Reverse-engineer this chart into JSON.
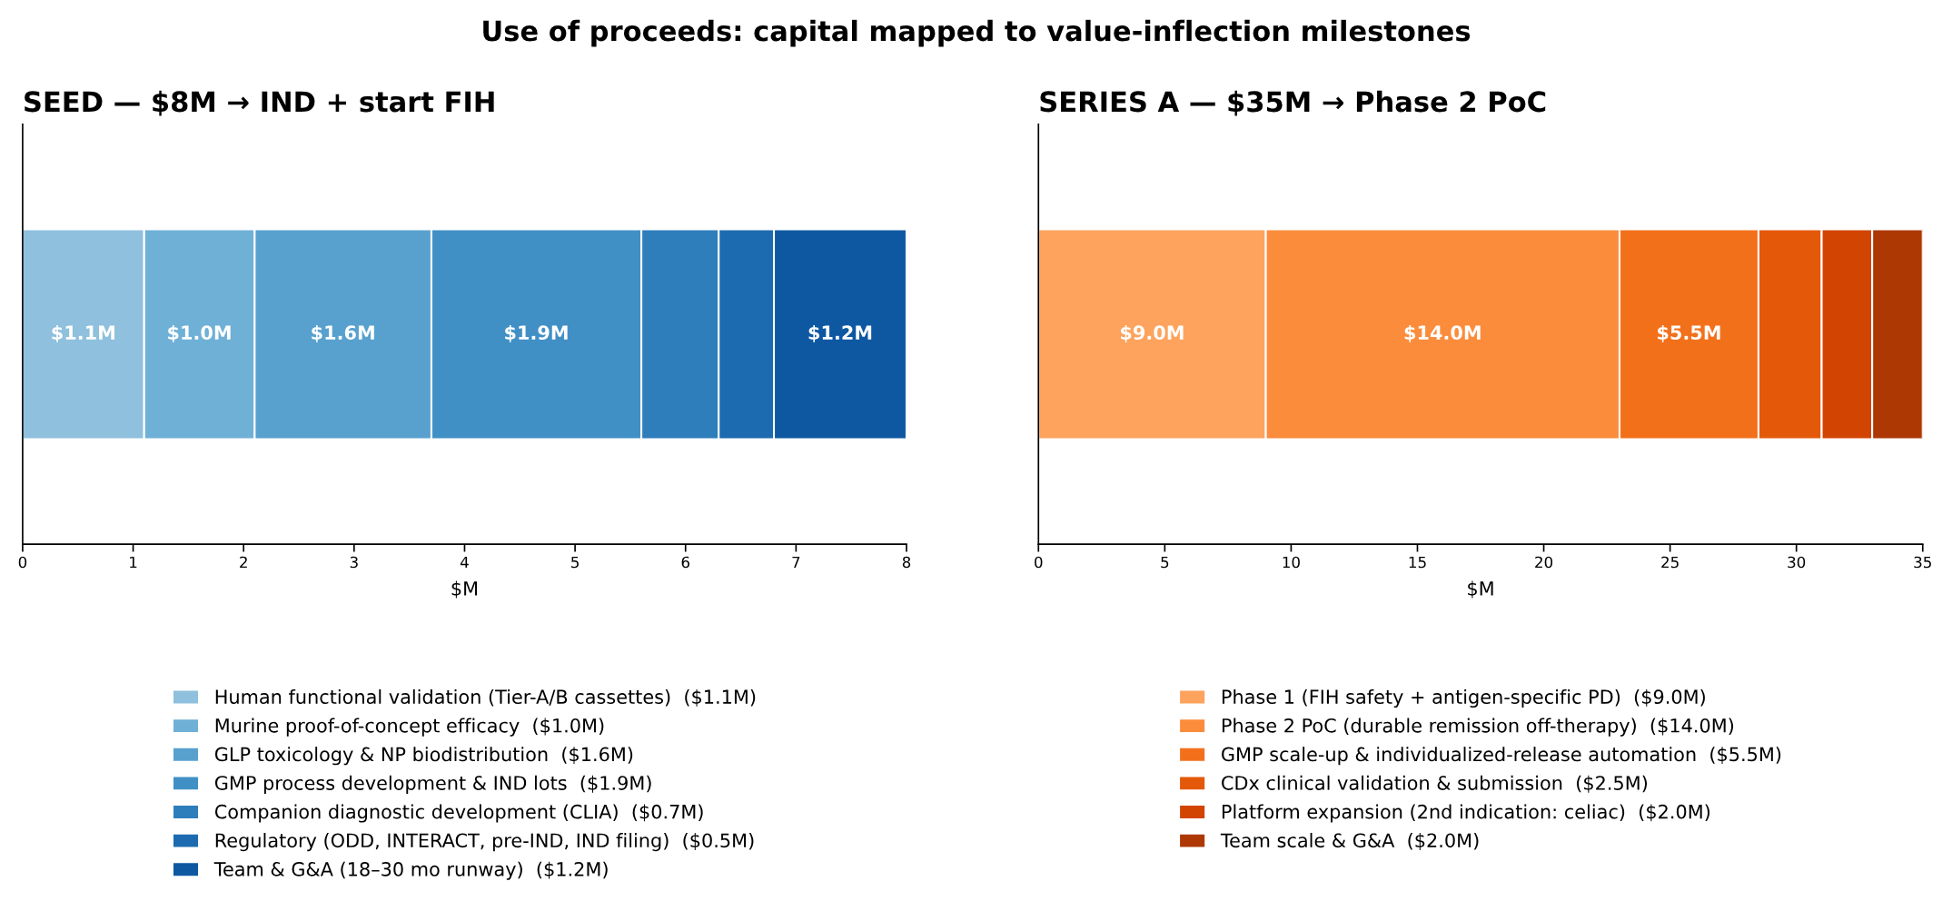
{
  "chart_data": [
    {
      "type": "bar",
      "orientation": "horizontal",
      "stacked": true,
      "title": "Use of proceeds: capital mapped to value-inflection milestones",
      "subtitle": "SEED — $8M → IND + start FIH",
      "xlabel": "$M",
      "categories": [
        null
      ],
      "xlim": [
        0,
        8
      ],
      "xticks": [
        0,
        1,
        2,
        3,
        4,
        5,
        6,
        7,
        8
      ],
      "tick_labels": "x",
      "grid": false,
      "legend": "bottom",
      "series": [
        {
          "name": "Human functional validation (Tier-A/B cassettes)  ($1.1M)",
          "color": "#8fc0dd",
          "values": [
            1.1
          ],
          "value_labels": [
            "$1.1M"
          ]
        },
        {
          "name": "Murine proof-of-concept efficacy  ($1.0M)",
          "color": "#6fb0d6",
          "values": [
            1.0
          ],
          "value_labels": [
            "$1.0M"
          ]
        },
        {
          "name": "GLP toxicology & NP biodistribution  ($1.6M)",
          "color": "#58a1cf",
          "values": [
            1.6
          ],
          "value_labels": [
            "$1.6M"
          ]
        },
        {
          "name": "GMP process development & IND lots  ($1.9M)",
          "color": "#4190c5",
          "values": [
            1.9
          ],
          "value_labels": [
            "$1.9M"
          ]
        },
        {
          "name": "Companion diagnostic development (CLIA)  ($0.7M)",
          "color": "#2e7ebc",
          "values": [
            0.7
          ],
          "value_labels": [
            null
          ]
        },
        {
          "name": "Regulatory (ODD, INTERACT, pre-IND, IND filing)  ($0.5M)",
          "color": "#1c6bb0",
          "values": [
            0.5
          ],
          "value_labels": [
            null
          ]
        },
        {
          "name": "Team & G&A (18–30 mo runway)  ($1.2M)",
          "color": "#0e58a2",
          "values": [
            1.2
          ],
          "value_labels": [
            "$1.2M"
          ]
        }
      ]
    },
    {
      "type": "bar",
      "orientation": "horizontal",
      "stacked": true,
      "subtitle": "SERIES A — $35M → Phase 2 PoC",
      "xlabel": "$M",
      "categories": [
        null
      ],
      "xlim": [
        0,
        35
      ],
      "xticks": [
        0,
        5,
        10,
        15,
        20,
        25,
        30,
        35
      ],
      "tick_labels": "x",
      "grid": false,
      "legend": "bottom",
      "series": [
        {
          "name": "Phase 1 (FIH safety + antigen-specific PD)  ($9.0M)",
          "color": "#fda35d",
          "values": [
            9.0
          ],
          "value_labels": [
            "$9.0M"
          ]
        },
        {
          "name": "Phase 2 PoC (durable remission off-therapy)  ($14.0M)",
          "color": "#fb8c3c",
          "values": [
            14.0
          ],
          "value_labels": [
            "$14.0M"
          ]
        },
        {
          "name": "GMP scale-up & individualized-release automation  ($5.5M)",
          "color": "#f3701b",
          "values": [
            5.5
          ],
          "value_labels": [
            "$5.5M"
          ]
        },
        {
          "name": "CDx clinical validation & submission  ($2.5M)",
          "color": "#e4580a",
          "values": [
            2.5
          ],
          "value_labels": [
            null
          ]
        },
        {
          "name": "Platform expansion (2nd indication: celiac)  ($2.0M)",
          "color": "#d24401",
          "values": [
            2.0
          ],
          "value_labels": [
            null
          ]
        },
        {
          "name": "Team scale & G&A  ($2.0M)",
          "color": "#ad3803",
          "values": [
            2.0
          ],
          "value_labels": [
            null
          ]
        }
      ]
    }
  ]
}
